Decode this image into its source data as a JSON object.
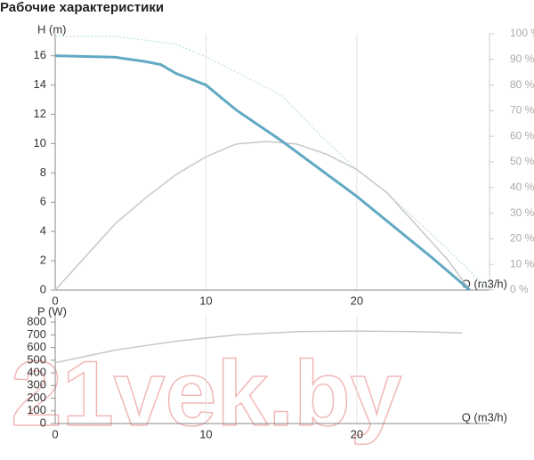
{
  "watermark": "21vek.by",
  "chart_data": [
    {
      "type": "line",
      "title": "Рабочие характеристики",
      "y_label": "H (m)",
      "x_label": "Q (m3/h)",
      "xlim": [
        0,
        28.8
      ],
      "xticks": [
        0,
        10,
        20
      ],
      "ylim": [
        0,
        17.5
      ],
      "yticks": [
        0,
        2,
        4,
        6,
        8,
        10,
        12,
        14,
        16
      ],
      "y2lim": [
        0,
        100
      ],
      "y2ticks": [
        {
          "value": 0,
          "label": "0 %"
        },
        {
          "value": 10,
          "label": "10 %"
        },
        {
          "value": 20,
          "label": "20 %"
        },
        {
          "value": 30,
          "label": "30 %"
        },
        {
          "value": 40,
          "label": "40 %"
        },
        {
          "value": 50,
          "label": "50 %"
        },
        {
          "value": 60,
          "label": "60 %"
        },
        {
          "value": 70,
          "label": "70 %"
        },
        {
          "value": 80,
          "label": "80 %"
        },
        {
          "value": 90,
          "label": "90 %"
        },
        {
          "value": 100,
          "label": "100 %"
        }
      ],
      "grid": true,
      "series": [
        {
          "color": "#c9e4ee",
          "dashed": true,
          "axis": "y2",
          "x": [
            0,
            4,
            8,
            10,
            12,
            15,
            18,
            20,
            22,
            24,
            26,
            28.8
          ],
          "values": [
            99,
            99,
            96,
            91,
            85,
            76,
            58,
            47,
            38,
            27,
            16,
            0
          ]
        },
        {
          "color": "#c8c8c8",
          "axis": "y2",
          "x": [
            0,
            2,
            4,
            6,
            8,
            10,
            12,
            14,
            16,
            18,
            20,
            22,
            24,
            26,
            27.5
          ],
          "values": [
            0,
            13,
            26,
            36,
            45,
            52,
            57,
            58,
            57,
            53,
            47,
            38,
            25,
            12,
            0
          ]
        },
        {
          "color": "#62a9c3",
          "width": 3,
          "x": [
            0,
            2,
            4,
            6,
            7,
            8,
            10,
            12,
            15,
            20,
            25,
            27.5
          ],
          "values": [
            16,
            15.95,
            15.9,
            15.6,
            15.4,
            14.8,
            14.0,
            12.3,
            10.2,
            6.4,
            2.2,
            0
          ]
        }
      ]
    },
    {
      "type": "line",
      "y_label": "P (W)",
      "x_label": "Q (m3/h)",
      "xlim": [
        0,
        28.8
      ],
      "xticks": [
        0,
        10,
        20
      ],
      "ylim": [
        0,
        850
      ],
      "yticks": [
        0,
        100,
        200,
        300,
        400,
        500,
        600,
        700,
        800
      ],
      "grid": true,
      "series": [
        {
          "color": "#c8c8c8",
          "x": [
            0,
            4,
            8,
            12,
            16,
            20,
            24,
            27
          ],
          "values": [
            480,
            580,
            650,
            700,
            725,
            730,
            725,
            715
          ]
        }
      ]
    }
  ]
}
